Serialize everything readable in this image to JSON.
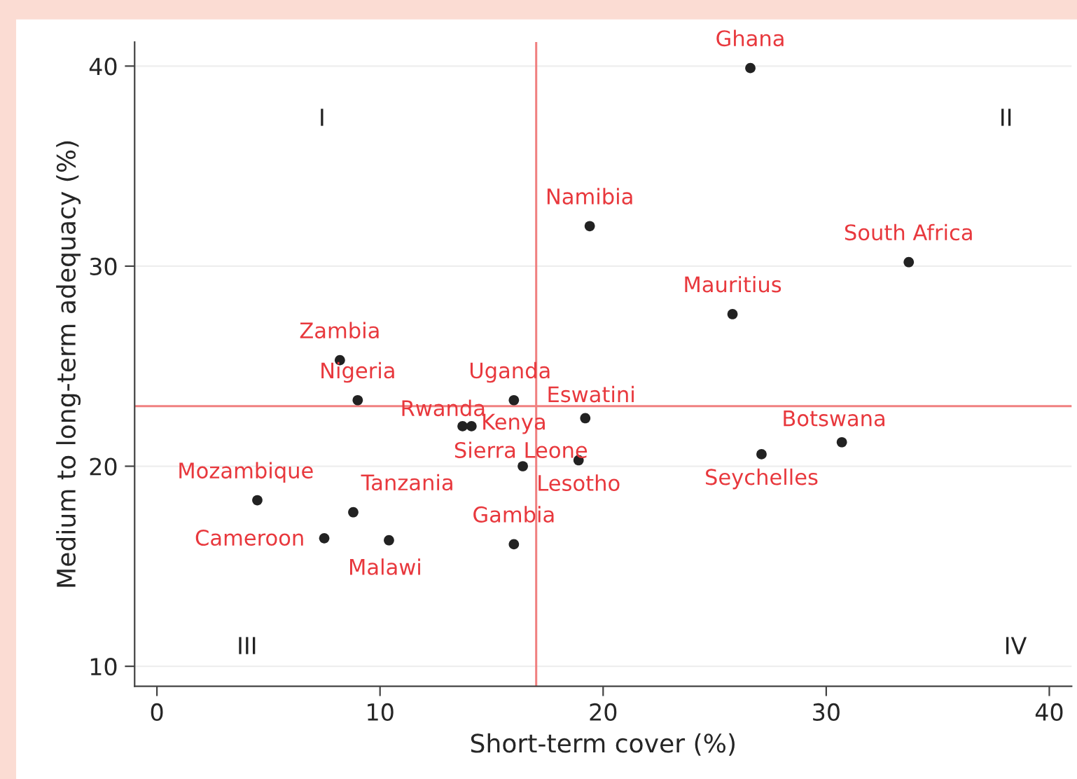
{
  "chart_data": {
    "type": "scatter",
    "xlabel": "Short-term cover (%)",
    "ylabel": "Medium to long-term adequacy (%)",
    "x": [
      26.6,
      19.4,
      33.7,
      25.8,
      8.2,
      9.0,
      16.0,
      19.2,
      13.7,
      14.1,
      30.7,
      27.1,
      18.9,
      16.4,
      4.5,
      8.8,
      7.5,
      10.4,
      16.0
    ],
    "series": [
      {
        "color": "#222222",
        "values": [
          39.9,
          32.0,
          30.2,
          27.6,
          25.3,
          23.3,
          23.3,
          22.4,
          22.0,
          22.0,
          21.2,
          20.6,
          20.3,
          20.0,
          18.3,
          17.7,
          16.4,
          16.3,
          16.1
        ]
      }
    ],
    "marker": "circle",
    "xlim": [
      -1,
      41
    ],
    "xticks": [
      0,
      10,
      20,
      30,
      40
    ],
    "ylim": [
      9,
      41.2
    ],
    "yticks": [
      10,
      20,
      30,
      40
    ],
    "grid": "y",
    "ref_lines": [
      {
        "axis": "x",
        "value": 17.0,
        "color": "#f08080"
      },
      {
        "axis": "y",
        "value": 23.0,
        "color": "#f08080"
      }
    ],
    "annotations": [
      {
        "text": "Ghana",
        "x": 26.6,
        "y": 39.9
      },
      {
        "text": "Namibia",
        "x": 19.4,
        "y": 32.0
      },
      {
        "text": "South Africa",
        "x": 33.7,
        "y": 30.2
      },
      {
        "text": "Mauritius",
        "x": 25.8,
        "y": 27.6
      },
      {
        "text": "Zambia",
        "x": 8.2,
        "y": 25.3
      },
      {
        "text": "Nigeria",
        "x": 9.0,
        "y": 23.3
      },
      {
        "text": "Uganda",
        "x": 16.0,
        "y": 23.3
      },
      {
        "text": "Eswatini",
        "x": 19.2,
        "y": 22.4
      },
      {
        "text": "Rwanda",
        "x": 13.7,
        "y": 22.0
      },
      {
        "text": "Kenya",
        "x": 14.1,
        "y": 22.0
      },
      {
        "text": "Botswana",
        "x": 30.7,
        "y": 21.2
      },
      {
        "text": "Seychelles",
        "x": 27.1,
        "y": 20.6
      },
      {
        "text": "Lesotho",
        "x": 18.9,
        "y": 20.3
      },
      {
        "text": "Sierra Leone",
        "x": 16.4,
        "y": 20.0
      },
      {
        "text": "Mozambique",
        "x": 4.5,
        "y": 18.3
      },
      {
        "text": "Tanzania",
        "x": 8.8,
        "y": 17.7
      },
      {
        "text": "Cameroon",
        "x": 7.5,
        "y": 16.4
      },
      {
        "text": "Malawi",
        "x": 10.4,
        "y": 16.3
      },
      {
        "text": "Gambia",
        "x": 16.0,
        "y": 16.1
      },
      "I",
      "II",
      "III",
      "IV"
    ]
  }
}
